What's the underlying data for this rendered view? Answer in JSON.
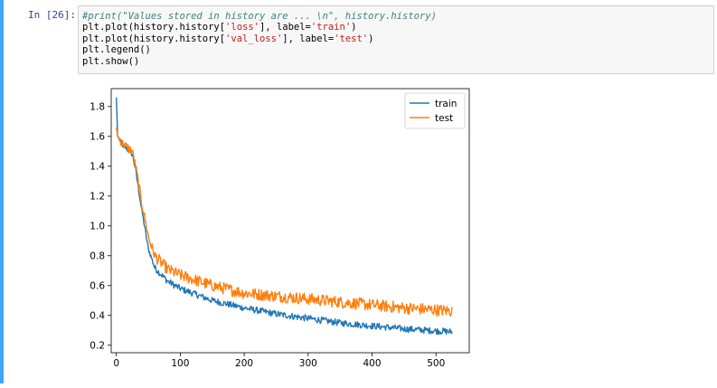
{
  "cell": {
    "prompt": "In [26]:",
    "code_lines": [
      [
        {
          "t": "comment",
          "v": "#print(\"Values stored in history are ... \\n\", history.history)"
        }
      ],
      [
        {
          "t": "plain",
          "v": "plt.plot(history.history["
        },
        {
          "t": "str",
          "v": "'loss'"
        },
        {
          "t": "plain",
          "v": "], label="
        },
        {
          "t": "str",
          "v": "'train'"
        },
        {
          "t": "plain",
          "v": ")"
        }
      ],
      [
        {
          "t": "plain",
          "v": "plt.plot(history.history["
        },
        {
          "t": "str",
          "v": "'val_loss'"
        },
        {
          "t": "plain",
          "v": "], label="
        },
        {
          "t": "str",
          "v": "'test'"
        },
        {
          "t": "plain",
          "v": ")"
        }
      ],
      [
        {
          "t": "plain",
          "v": "plt.legend()"
        }
      ],
      [
        {
          "t": "plain",
          "v": "plt.show()"
        }
      ]
    ]
  },
  "chart_data": {
    "type": "line",
    "title": "",
    "xlabel": "",
    "ylabel": "",
    "xlim": [
      -8,
      552
    ],
    "ylim": [
      0.15,
      1.92
    ],
    "xticks": [
      0,
      100,
      200,
      300,
      400,
      500
    ],
    "yticks": [
      0.2,
      0.4,
      0.6,
      0.8,
      1.0,
      1.2,
      1.4,
      1.6,
      1.8
    ],
    "ytick_labels": [
      "0.2",
      "0.4",
      "0.6",
      "0.8",
      "1.0",
      "1.2",
      "1.4",
      "1.6",
      "1.8"
    ],
    "grid": false,
    "legend_position": "top-right",
    "series": [
      {
        "name": "train",
        "color": "#1f77b4",
        "keypoints": [
          [
            0,
            1.86
          ],
          [
            2,
            1.6
          ],
          [
            10,
            1.54
          ],
          [
            25,
            1.48
          ],
          [
            30,
            1.38
          ],
          [
            40,
            1.1
          ],
          [
            50,
            0.85
          ],
          [
            60,
            0.72
          ],
          [
            80,
            0.63
          ],
          [
            100,
            0.58
          ],
          [
            150,
            0.5
          ],
          [
            200,
            0.45
          ],
          [
            250,
            0.41
          ],
          [
            300,
            0.38
          ],
          [
            350,
            0.35
          ],
          [
            400,
            0.33
          ],
          [
            450,
            0.31
          ],
          [
            525,
            0.29
          ]
        ],
        "noise": 0.022
      },
      {
        "name": "test",
        "color": "#ff7f0e",
        "keypoints": [
          [
            0,
            1.66
          ],
          [
            2,
            1.6
          ],
          [
            10,
            1.55
          ],
          [
            25,
            1.5
          ],
          [
            30,
            1.4
          ],
          [
            40,
            1.15
          ],
          [
            50,
            0.93
          ],
          [
            60,
            0.8
          ],
          [
            80,
            0.71
          ],
          [
            100,
            0.67
          ],
          [
            150,
            0.6
          ],
          [
            200,
            0.55
          ],
          [
            250,
            0.53
          ],
          [
            300,
            0.51
          ],
          [
            350,
            0.49
          ],
          [
            400,
            0.47
          ],
          [
            450,
            0.45
          ],
          [
            525,
            0.43
          ]
        ],
        "noise": 0.04
      }
    ]
  }
}
